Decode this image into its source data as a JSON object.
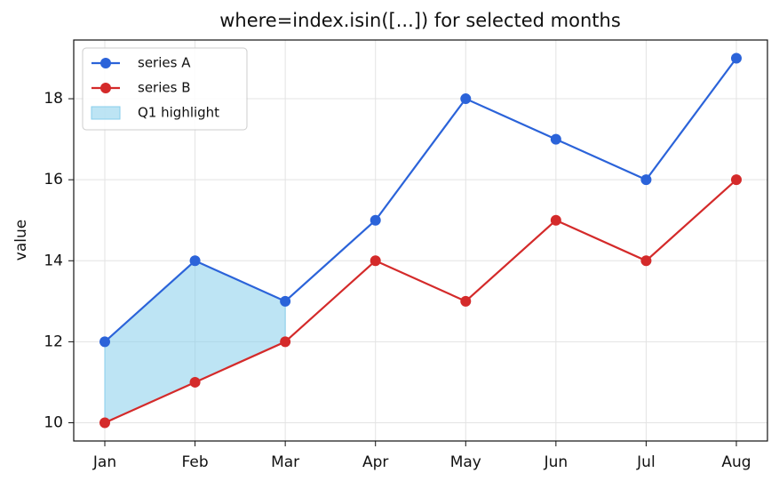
{
  "chart_data": {
    "type": "line",
    "title": "where=index.isin([...]) for selected months",
    "ylabel": "value",
    "categories": [
      "Jan",
      "Feb",
      "Mar",
      "Apr",
      "May",
      "Jun",
      "Jul",
      "Aug"
    ],
    "series": [
      {
        "name": "series A",
        "color": "#2b63d9",
        "values": [
          12,
          14,
          13,
          15,
          18,
          17,
          16,
          19
        ]
      },
      {
        "name": "series B",
        "color": "#d42a2a",
        "values": [
          10,
          11,
          12,
          14,
          13,
          15,
          14,
          16
        ]
      }
    ],
    "fill_between": {
      "name": "Q1 highlight",
      "color": "#87ceeb",
      "where": [
        true,
        true,
        true,
        false,
        false,
        false,
        false,
        false
      ]
    },
    "ylim": [
      9.55,
      19.45
    ],
    "yticks": [
      10,
      12,
      14,
      16,
      18
    ],
    "grid": true,
    "legend": "upper left"
  }
}
